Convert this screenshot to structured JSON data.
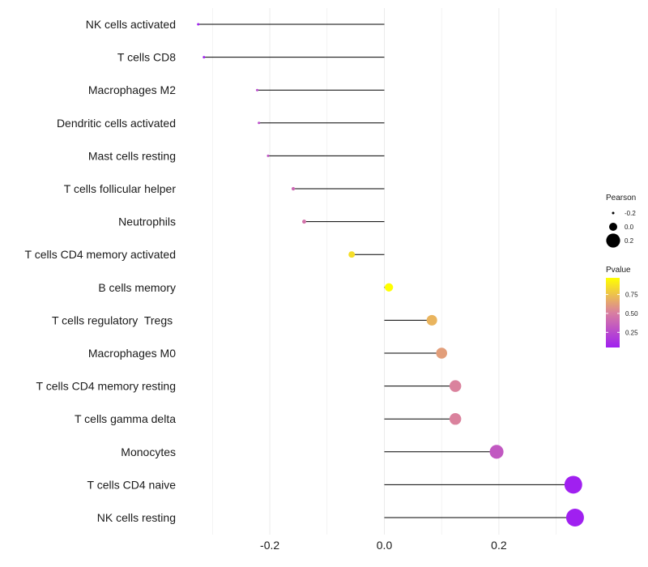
{
  "chart_data": {
    "type": "lollipop",
    "title": "",
    "xlabel": "",
    "ylabel": "",
    "xlim": [
      -0.37,
      0.37
    ],
    "xticks": [
      -0.2,
      0.0,
      0.2
    ],
    "xtick_labels": [
      "-0.2",
      "0.0",
      "0.2"
    ],
    "grid": true,
    "points": [
      {
        "category": "NK cells activated",
        "pearson": -0.325,
        "pvalue": 0.02
      },
      {
        "category": "T cells CD8",
        "pearson": -0.315,
        "pvalue": 0.03
      },
      {
        "category": "Macrophages M2",
        "pearson": -0.222,
        "pvalue": 0.25
      },
      {
        "category": "Dendritic cells activated",
        "pearson": -0.219,
        "pvalue": 0.27
      },
      {
        "category": "Mast cells resting",
        "pearson": -0.203,
        "pvalue": 0.3
      },
      {
        "category": "T cells follicular helper",
        "pearson": -0.159,
        "pvalue": 0.4
      },
      {
        "category": "Neutrophils",
        "pearson": -0.14,
        "pvalue": 0.45
      },
      {
        "category": "T cells CD4 memory activated",
        "pearson": -0.057,
        "pvalue": 0.85
      },
      {
        "category": "B cells memory",
        "pearson": 0.008,
        "pvalue": 0.97
      },
      {
        "category": "T cells regulatory  Tregs ",
        "pearson": 0.083,
        "pvalue": 0.7
      },
      {
        "category": "Macrophages M0",
        "pearson": 0.1,
        "pvalue": 0.62
      },
      {
        "category": "T cells CD4 memory resting",
        "pearson": 0.124,
        "pvalue": 0.52
      },
      {
        "category": "T cells gamma delta",
        "pearson": 0.124,
        "pvalue": 0.52
      },
      {
        "category": "Monocytes",
        "pearson": 0.196,
        "pvalue": 0.32
      },
      {
        "category": "T cells CD4 naive",
        "pearson": 0.33,
        "pvalue": 0.04
      },
      {
        "category": "NK cells resting",
        "pearson": 0.333,
        "pvalue": 0.03
      }
    ],
    "legend": {
      "size_title": "Pearson",
      "size_entries": [
        {
          "label": "-0.2",
          "value": -0.2
        },
        {
          "label": "0.0",
          "value": 0.0
        },
        {
          "label": "0.2",
          "value": 0.2
        }
      ],
      "color_title": "Pvalue",
      "color_range": [
        0.05,
        0.97
      ],
      "color_ticks": [
        {
          "label": "0.75",
          "value": 0.75
        },
        {
          "label": "0.50",
          "value": 0.5
        },
        {
          "label": "0.25",
          "value": 0.25
        }
      ],
      "color_low": "#a020f0",
      "color_mid": "#d97fa0",
      "color_high": "#ffff00"
    },
    "colors": {
      "stem": "#000000",
      "grid": "#ebebeb"
    }
  }
}
